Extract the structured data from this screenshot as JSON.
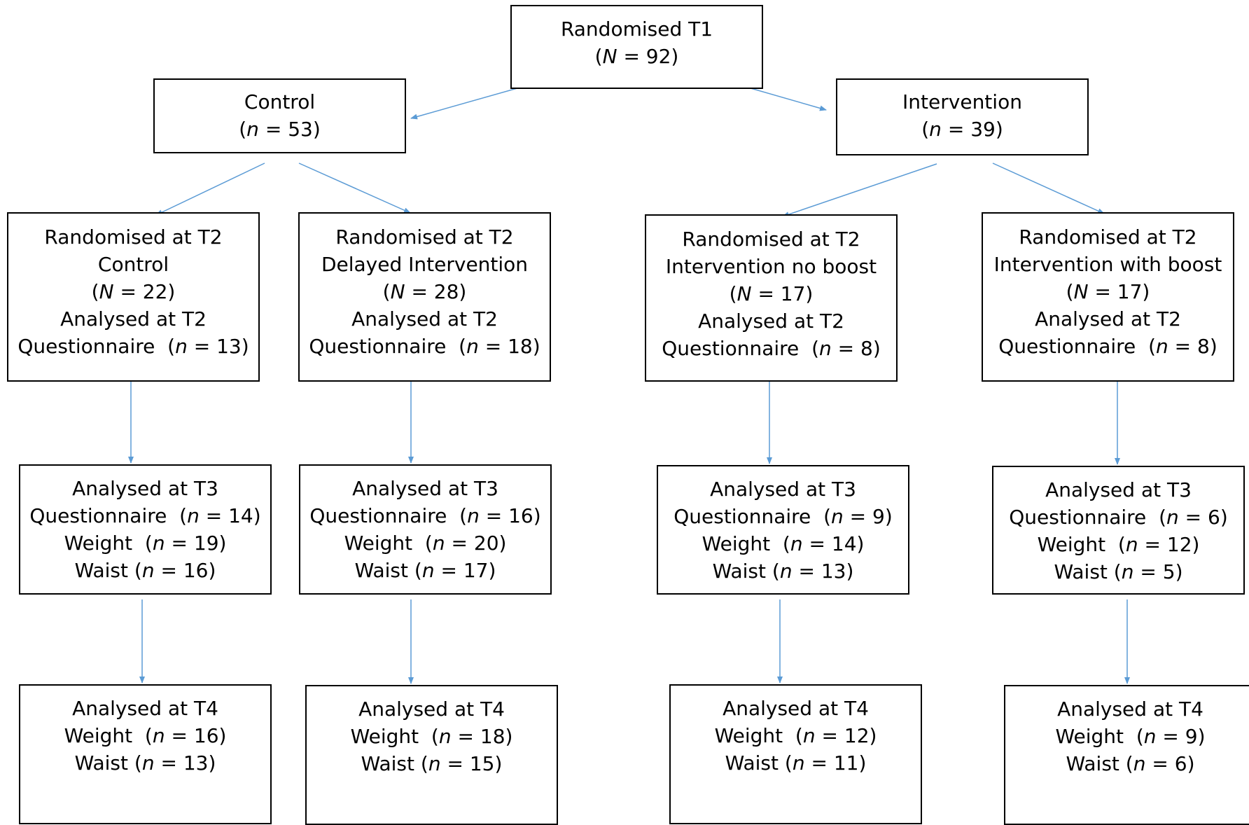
{
  "nodes": {
    "root": {
      "line1": "Randomised T1",
      "var": "N",
      "val": "= 92)"
    },
    "control": {
      "line1": "Control",
      "var": "n",
      "val": "= 53)"
    },
    "intervention": {
      "line1": "Intervention",
      "var": "n",
      "val": "= 39)"
    },
    "t2_control": {
      "l1": "Randomised at T2",
      "l2": "Control",
      "var": "N",
      "val": "= 22)",
      "l4": "Analysed at T2",
      "q_label": "Questionnaire",
      "q_val": "= 13)"
    },
    "t2_delayed": {
      "l1": "Randomised at T2",
      "l2": "Delayed Intervention",
      "var": "N",
      "val": "= 28)",
      "l4": "Analysed at T2",
      "q_label": "Questionnaire",
      "q_val": "= 18)"
    },
    "t2_noboost": {
      "l1": "Randomised at T2",
      "l2": "Intervention no boost",
      "var": "N",
      "val": "= 17)",
      "l4": "Analysed at T2",
      "q_label": "Questionnaire",
      "q_val": "= 8)"
    },
    "t2_boost": {
      "l1": "Randomised at T2",
      "l2": "Intervention with boost",
      "var": "N",
      "val": "= 17)",
      "l4": "Analysed at T2",
      "q_label": "Questionnaire",
      "q_val": "= 8)"
    },
    "t3_control": {
      "title": "Analysed at T3",
      "q_label": "Questionnaire",
      "q_val": "= 14)",
      "w_label": "Weight",
      "w_val": "= 19)",
      "wa_label": "Waist",
      "wa_val": "= 16)"
    },
    "t3_delayed": {
      "title": "Analysed at T3",
      "q_label": "Questionnaire",
      "q_val": "= 16)",
      "w_label": "Weight",
      "w_val": "= 20)",
      "wa_label": "Waist",
      "wa_val": "= 17)"
    },
    "t3_noboost": {
      "title": "Analysed at T3",
      "q_label": "Questionnaire",
      "q_val": "= 9)",
      "w_label": "Weight",
      "w_val": "= 14)",
      "wa_label": "Waist",
      "wa_val": "= 13)"
    },
    "t3_boost": {
      "title": "Analysed at T3",
      "q_label": "Questionnaire",
      "q_val": "= 6)",
      "w_label": "Weight",
      "w_val": "= 12)",
      "wa_label": "Waist",
      "wa_val": "= 5)"
    },
    "t4_control": {
      "title": "Analysed at T4",
      "w_label": "Weight",
      "w_val": "= 16)",
      "wa_label": "Waist",
      "wa_val": "= 13)"
    },
    "t4_delayed": {
      "title": "Analysed at T4",
      "w_label": "Weight",
      "w_val": "= 18)",
      "wa_label": "Waist",
      "wa_val": "= 15)"
    },
    "t4_noboost": {
      "title": "Analysed at T4",
      "w_label": "Weight",
      "w_val": "= 12)",
      "wa_label": "Waist",
      "wa_val": "= 11)"
    },
    "t4_boost": {
      "title": "Analysed at T4",
      "w_label": "Weight",
      "w_val": "= 9)",
      "wa_label": "Waist",
      "wa_val": "= 6)"
    }
  },
  "colors": {
    "arrow": "#5B9BD5",
    "border": "#000000"
  }
}
